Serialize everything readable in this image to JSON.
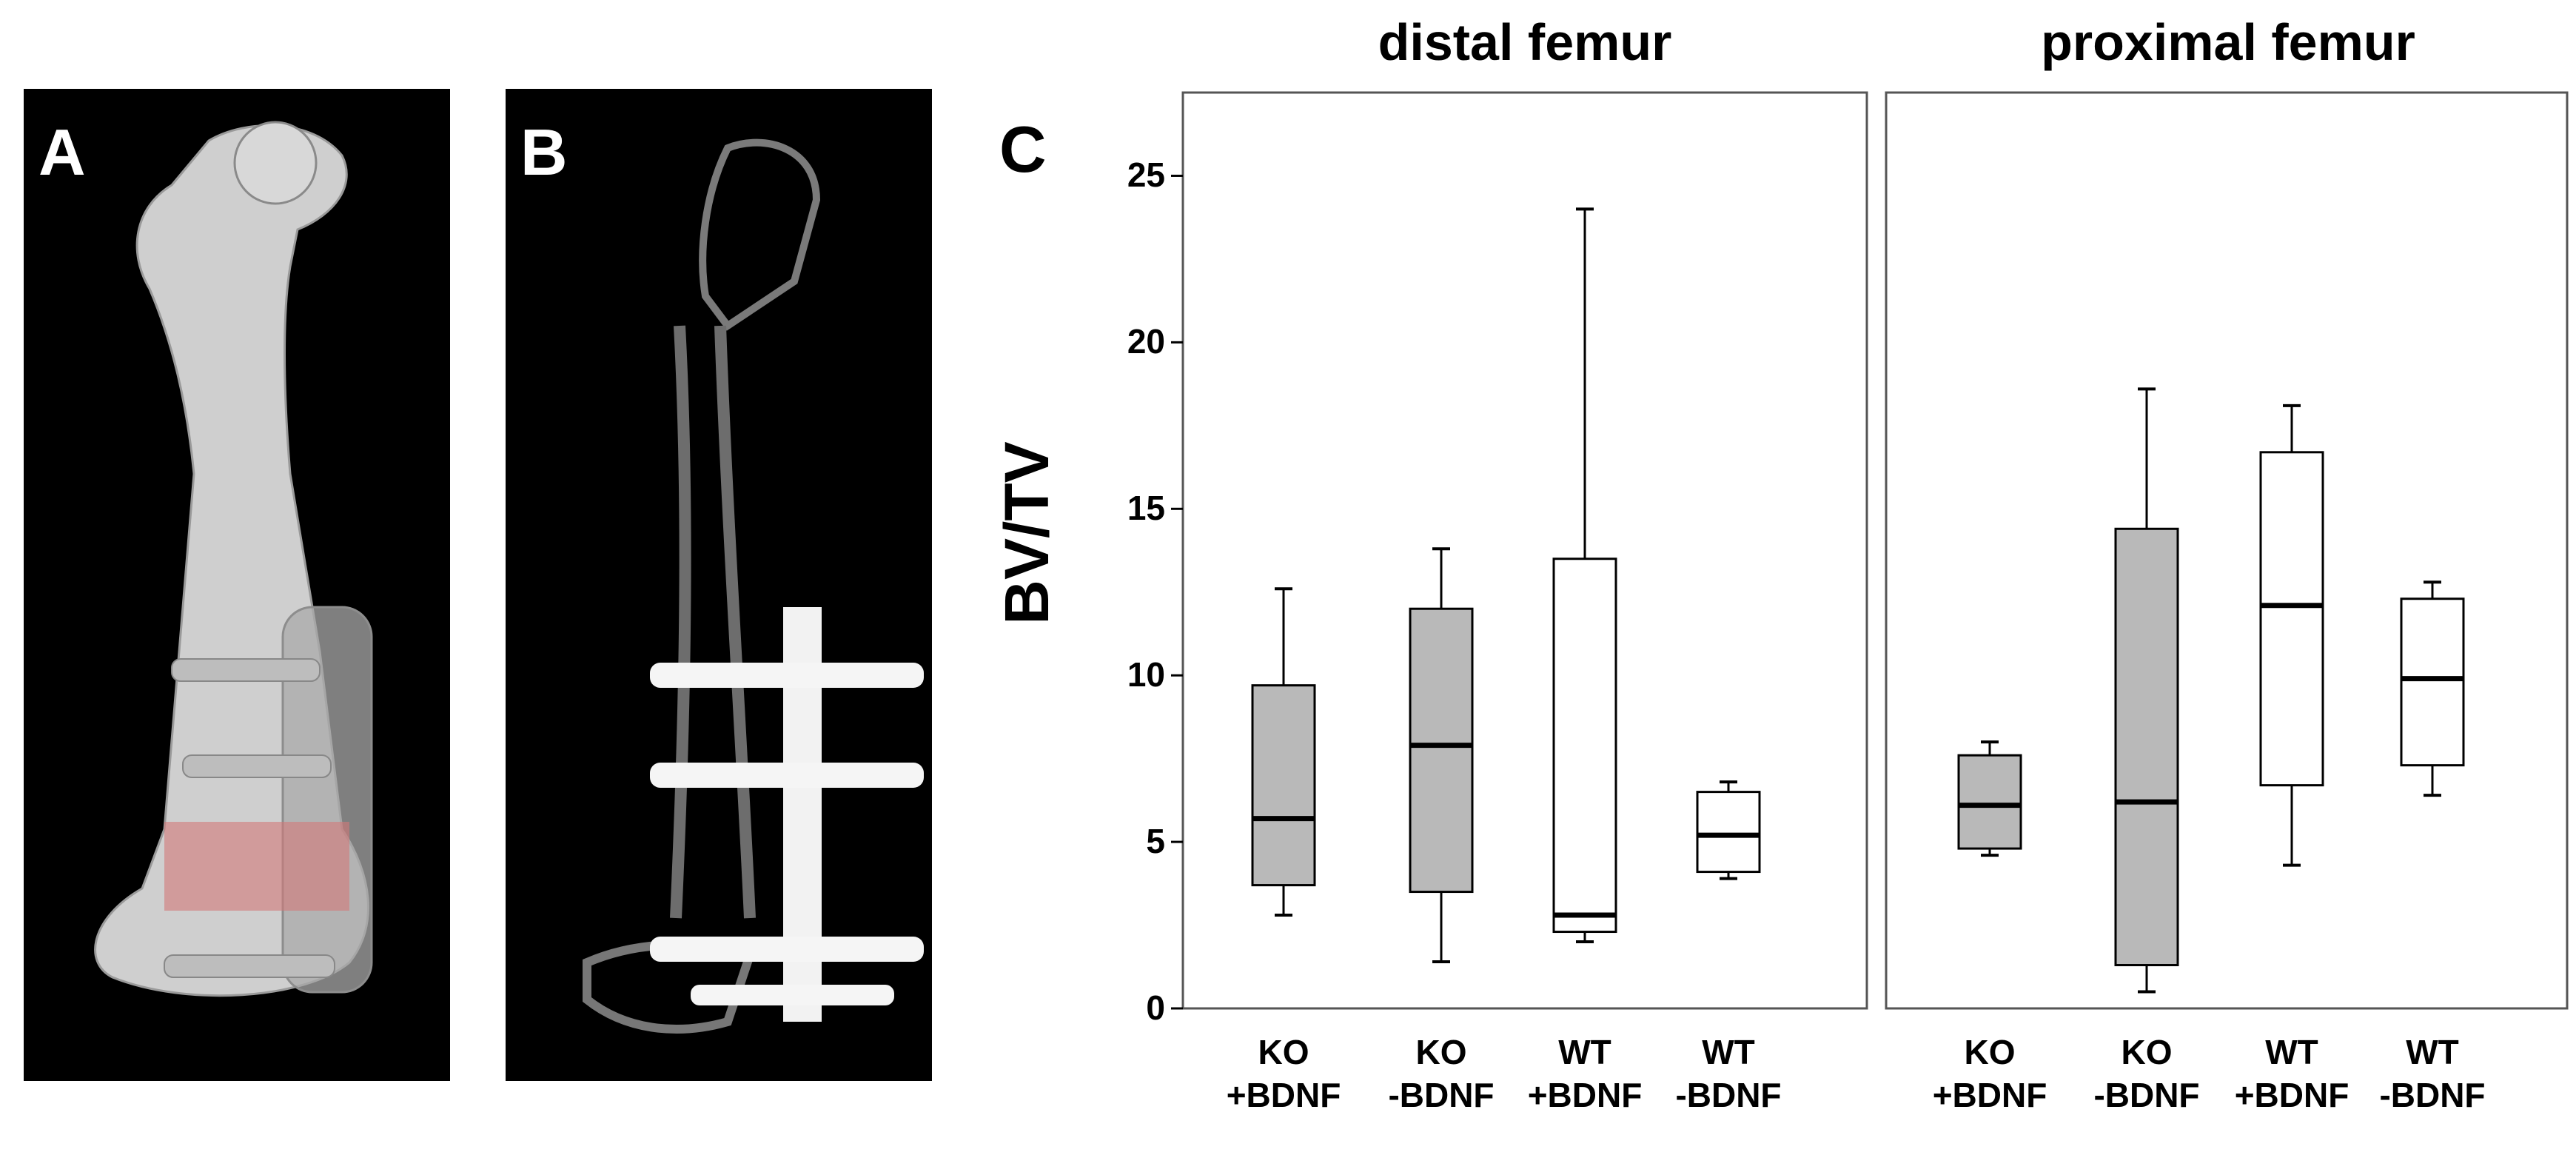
{
  "panels": {
    "a_letter": "A",
    "b_letter": "B",
    "c_letter": "C"
  },
  "chart_data": {
    "type": "box",
    "ylabel": "BV/TV",
    "ylim": [
      0,
      27.5
    ],
    "yticks": [
      0,
      5,
      10,
      15,
      20,
      25
    ],
    "grid": false,
    "facets": [
      {
        "title": "distal femur",
        "groups": [
          {
            "label_line1": "KO",
            "label_line2": "+BDNF",
            "fill": "#b9b9b9",
            "min": 2.8,
            "q1": 3.7,
            "median": 5.7,
            "q3": 9.7,
            "max": 12.6
          },
          {
            "label_line1": "KO",
            "label_line2": "-BDNF",
            "fill": "#b9b9b9",
            "min": 1.4,
            "q1": 3.5,
            "median": 7.9,
            "q3": 12.0,
            "max": 13.8
          },
          {
            "label_line1": "WT",
            "label_line2": "+BDNF",
            "fill": "#ffffff",
            "min": 2.0,
            "q1": 2.3,
            "median": 2.8,
            "q3": 13.5,
            "max": 24.0
          },
          {
            "label_line1": "WT",
            "label_line2": "-BDNF",
            "fill": "#ffffff",
            "min": 3.9,
            "q1": 4.1,
            "median": 5.2,
            "q3": 6.5,
            "max": 6.8
          }
        ]
      },
      {
        "title": "proximal femur",
        "groups": [
          {
            "label_line1": "KO",
            "label_line2": "+BDNF",
            "fill": "#b9b9b9",
            "min": 4.6,
            "q1": 4.8,
            "median": 6.1,
            "q3": 7.6,
            "max": 8.0
          },
          {
            "label_line1": "KO",
            "label_line2": "-BDNF",
            "fill": "#b9b9b9",
            "min": 0.5,
            "q1": 1.3,
            "median": 6.2,
            "q3": 14.4,
            "max": 18.6
          },
          {
            "label_line1": "WT",
            "label_line2": "+BDNF",
            "fill": "#ffffff",
            "min": 4.3,
            "q1": 6.7,
            "median": 12.1,
            "q3": 16.7,
            "max": 18.1
          },
          {
            "label_line1": "WT",
            "label_line2": "-BDNF",
            "fill": "#ffffff",
            "min": 6.4,
            "q1": 7.3,
            "median": 9.9,
            "q3": 12.3,
            "max": 12.8
          }
        ]
      }
    ]
  }
}
